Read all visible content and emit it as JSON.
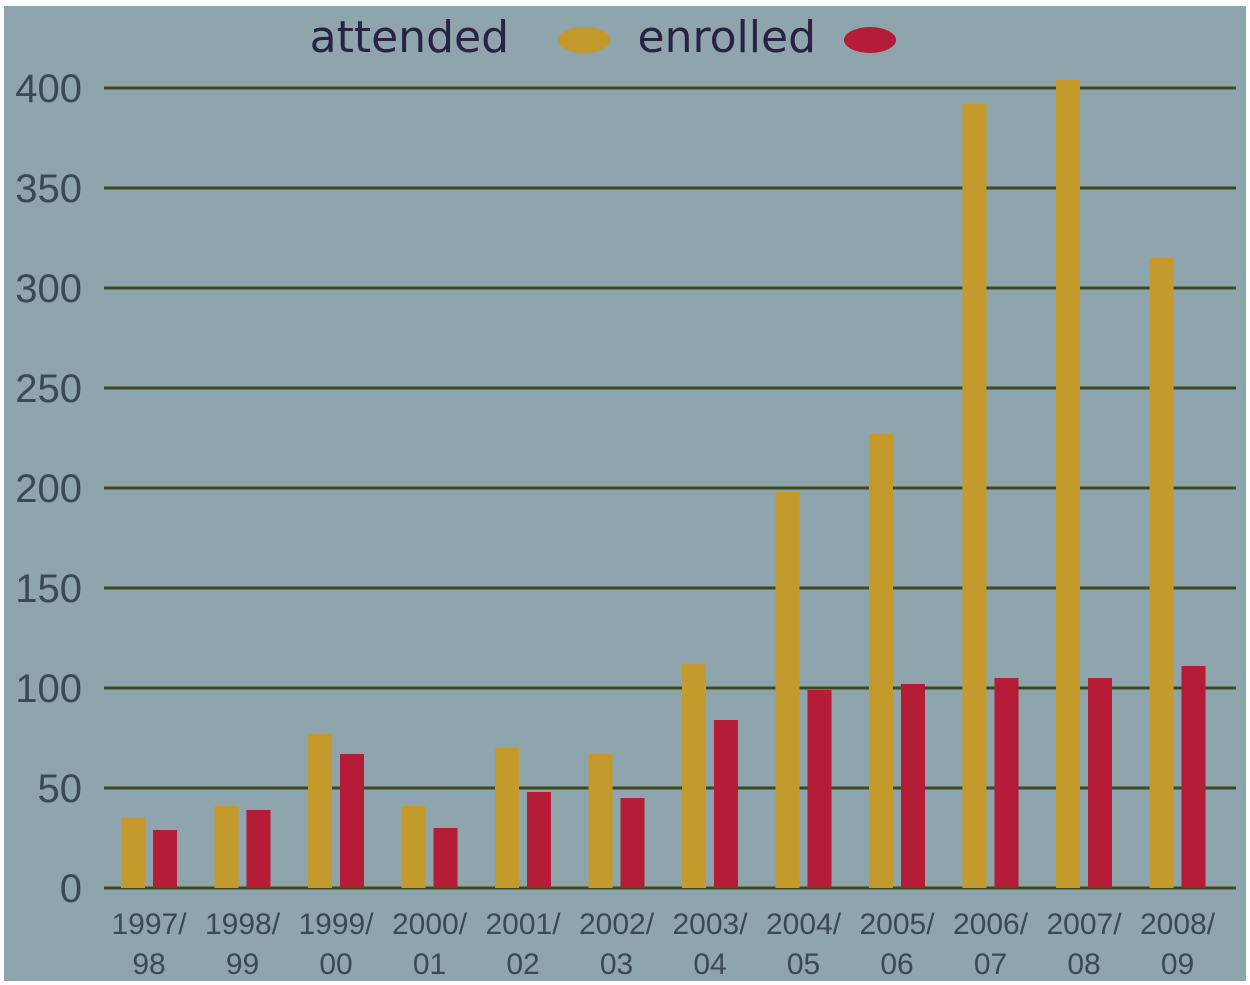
{
  "colors": {
    "background": "#8ea5ad",
    "grid": "#3f4a1c",
    "attended": "#c49a2c",
    "enrolled": "#b41c38",
    "text": "#3a4a55",
    "legend_text": "#2a2240"
  },
  "chart_data": {
    "type": "bar",
    "categories": [
      [
        "1997/",
        "98"
      ],
      [
        "1998/",
        "99"
      ],
      [
        "1999/",
        "00"
      ],
      [
        "2000/",
        "01"
      ],
      [
        "2001/",
        "02"
      ],
      [
        "2002/",
        "03"
      ],
      [
        "2003/",
        "04"
      ],
      [
        "2004/",
        "05"
      ],
      [
        "2005/",
        "06"
      ],
      [
        "2006/",
        "07"
      ],
      [
        "2007/",
        "08"
      ],
      [
        "2008/",
        "09"
      ]
    ],
    "series": [
      {
        "name": "attended",
        "values": [
          35,
          41,
          77,
          41,
          70,
          67,
          112,
          198,
          227,
          392,
          404,
          315
        ]
      },
      {
        "name": "enrolled",
        "values": [
          29,
          39,
          67,
          30,
          48,
          45,
          84,
          99,
          102,
          105,
          105,
          111
        ]
      }
    ],
    "yticks": [
      "0",
      "50",
      "100",
      "150",
      "200",
      "250",
      "300",
      "350",
      "400"
    ],
    "ylim": [
      0,
      400
    ],
    "grid": true,
    "legend_position": "top-center"
  }
}
